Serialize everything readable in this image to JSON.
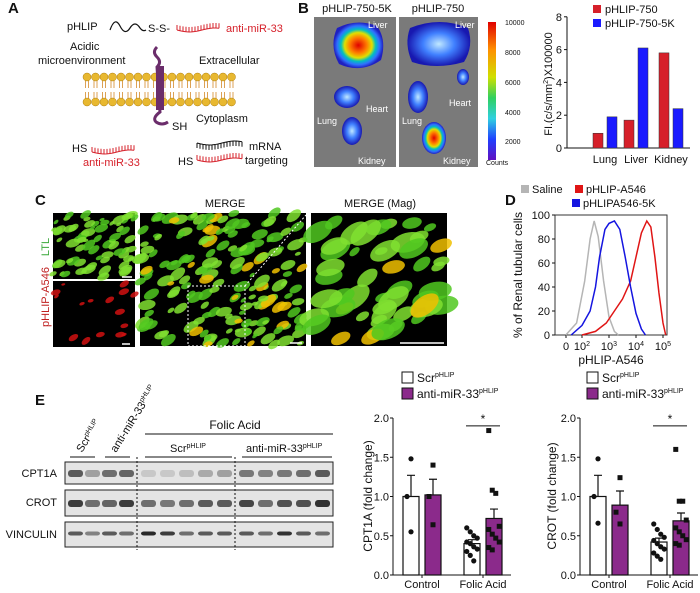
{
  "panel_labels": [
    "A",
    "B",
    "C",
    "D",
    "E"
  ],
  "panel_a": {
    "pHLIP": "pHLIP",
    "linker": "S-S-",
    "cargo_top": "anti-miR-33",
    "acidic": "Acidic",
    "microenvironment": "microenvironment",
    "extracellular": "Extracellular",
    "cytoplasm": "Cytoplasm",
    "sh": "SH",
    "hs_left": "HS",
    "cargo_bottom": "anti-miR-33",
    "hs_right": "HS",
    "mrna": "mRNA",
    "targeting": "targeting",
    "colors": {
      "pHLIP": "#6b2d6b",
      "cargo": "#d6202a",
      "membrane": "#e8b830"
    }
  },
  "panel_b": {
    "image_titles": [
      "pHLIP-750-5K",
      "pHLIP-750"
    ],
    "organs_left": [
      "Liver",
      "Heart",
      "Lung",
      "Kidney"
    ],
    "organs_right": [
      "Liver",
      "Heart",
      "Lung",
      "Kidney"
    ],
    "colorbar_ticks": [
      "10000",
      "8000",
      "6000",
      "4000",
      "2000"
    ],
    "colorbar_unit": "Counts"
  },
  "panel_c": {
    "titles": [
      "MERGE",
      "MERGE (Mag)"
    ],
    "channel_labels": [
      "LTL",
      "pHLIP-A546"
    ]
  },
  "panel_e_blot": {
    "group_top": "Folic Acid",
    "lane_groups": [
      "Scr",
      "anti-miR-33",
      "Scr",
      "anti-miR-33"
    ],
    "superscript": "pHLIP",
    "rows": [
      "CPT1A",
      "CROT",
      "VINCULIN"
    ]
  },
  "chart_data": [
    {
      "id": "B",
      "type": "bar",
      "categories": [
        "Lung",
        "Liver",
        "Kidney"
      ],
      "series": [
        {
          "name": "pHLIP-750",
          "color": "#d6202a",
          "values": [
            0.9,
            1.7,
            5.8
          ]
        },
        {
          "name": "pHLIP-750-5K",
          "color": "#1a1aff",
          "values": [
            1.9,
            6.1,
            2.4
          ]
        }
      ],
      "ylabel_main": "FI.(c/s/mm",
      "ylabel_sup": "2",
      "ylabel_end": ")X100000",
      "ylim": [
        0,
        8
      ],
      "yticks": [
        "0",
        "2",
        "4",
        "6",
        "8"
      ],
      "legend": "top-right"
    },
    {
      "id": "D",
      "type": "line",
      "xlabel": "pHLIP-A546",
      "ylabel": "% of Renal tubular cells",
      "ylim": [
        0,
        100
      ],
      "yticks": [
        "0",
        "20",
        "40",
        "60",
        "80",
        "100"
      ],
      "xtick_labels": [
        {
          "base": "0",
          "exp": ""
        },
        {
          "base": "10",
          "exp": "2"
        },
        {
          "base": "10",
          "exp": "3"
        },
        {
          "base": "10",
          "exp": "4"
        },
        {
          "base": "10",
          "exp": "5"
        }
      ],
      "x_scale": "log",
      "series": [
        {
          "name": "Saline",
          "color": "#b5b5b5",
          "x_log10": [
            1.4,
            1.8,
            2.1,
            2.3,
            2.45,
            2.6,
            2.8,
            3.0,
            3.2,
            3.35
          ],
          "y": [
            0,
            10,
            45,
            80,
            95,
            82,
            45,
            15,
            3,
            0
          ]
        },
        {
          "name": "pHLIP-A546",
          "color": "#e01515",
          "x_log10": [
            2.0,
            2.5,
            2.9,
            3.2,
            3.5,
            3.8,
            4.0,
            4.2,
            4.4,
            4.55,
            4.7,
            4.85,
            5.0,
            5.1
          ],
          "y": [
            0,
            3,
            10,
            20,
            30,
            45,
            65,
            85,
            95,
            90,
            65,
            35,
            10,
            0
          ]
        },
        {
          "name": "pHLIPA546-5K",
          "color": "#1515e0",
          "x_log10": [
            1.6,
            2.0,
            2.3,
            2.5,
            2.65,
            2.85,
            3.0,
            3.2,
            3.4,
            3.6,
            3.8,
            4.0,
            4.2,
            4.35
          ],
          "y": [
            0,
            8,
            20,
            40,
            65,
            88,
            93,
            95,
            88,
            65,
            40,
            18,
            5,
            0
          ]
        }
      ],
      "legend": "top"
    },
    {
      "id": "E-CPT1A",
      "type": "bar",
      "ylabel": "CPT1A (fold change)",
      "categories": [
        "Control",
        "Folic Acid"
      ],
      "ylim": [
        0,
        2.0
      ],
      "yticks": [
        "0.0",
        "0.5",
        "1.0",
        "1.5",
        "2.0"
      ],
      "significance": "*",
      "series": [
        {
          "name": "Scr",
          "name_sup": "pHLIP",
          "color": "#ffffff",
          "marker": "circle",
          "means": [
            1.0,
            0.4
          ],
          "sem": [
            0.27,
            0.05
          ],
          "points": [
            [
              1.48,
              1.0,
              0.55
            ],
            [
              0.6,
              0.55,
              0.5,
              0.47,
              0.42,
              0.4,
              0.36,
              0.33,
              0.3,
              0.25,
              0.18
            ]
          ]
        },
        {
          "name": "anti-miR-33",
          "name_sup": "pHLIP",
          "color": "#8b2a8b",
          "marker": "square",
          "means": [
            1.02,
            0.72
          ],
          "sem": [
            0.2,
            0.12
          ],
          "points": [
            [
              1.4,
              1.0,
              0.64
            ],
            [
              1.84,
              1.08,
              1.04,
              0.62,
              0.58,
              0.52,
              0.47,
              0.42,
              0.35,
              0.32
            ]
          ]
        }
      ],
      "legend": "top"
    },
    {
      "id": "E-CROT",
      "type": "bar",
      "ylabel": "CROT (fold change)",
      "categories": [
        "Control",
        "Folic Acid"
      ],
      "ylim": [
        0,
        2.0
      ],
      "yticks": [
        "0.0",
        "0.5",
        "1.0",
        "1.5",
        "2.0"
      ],
      "significance": "*",
      "series": [
        {
          "name": "Scr",
          "name_sup": "pHLIP",
          "color": "#ffffff",
          "marker": "circle",
          "means": [
            1.0,
            0.42
          ],
          "sem": [
            0.27,
            0.05
          ],
          "points": [
            [
              1.48,
              1.0,
              0.66
            ],
            [
              0.65,
              0.58,
              0.52,
              0.48,
              0.44,
              0.4,
              0.36,
              0.33,
              0.28,
              0.24,
              0.2
            ]
          ]
        },
        {
          "name": "anti-miR-33",
          "name_sup": "pHLIP",
          "color": "#8b2a8b",
          "marker": "square",
          "means": [
            0.89,
            0.69
          ],
          "sem": [
            0.18,
            0.1
          ],
          "points": [
            [
              1.24,
              0.8,
              0.65
            ],
            [
              1.6,
              0.94,
              0.94,
              0.7,
              0.6,
              0.55,
              0.5,
              0.45,
              0.4,
              0.38
            ]
          ]
        }
      ],
      "legend": "top"
    }
  ]
}
